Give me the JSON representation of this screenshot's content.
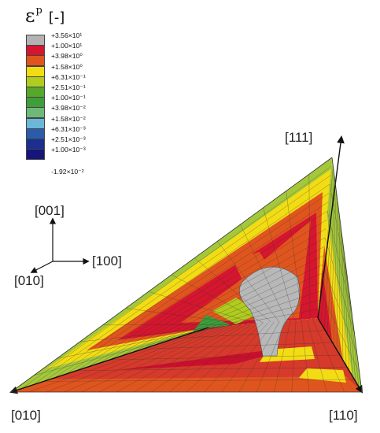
{
  "legend": {
    "symbol": "ε",
    "superscript": "p",
    "unit": "[-]",
    "levels": [
      {
        "label": "+3.56×10¹",
        "color": "#b3b3b3"
      },
      {
        "label": "+1.00×10¹",
        "color": "#d6152e"
      },
      {
        "label": "+3.98×10⁰",
        "color": "#e0551e"
      },
      {
        "label": "+1.58×10⁰",
        "color": "#f2dc14"
      },
      {
        "label": "+6.31×10⁻¹",
        "color": "#b0cc1f"
      },
      {
        "label": "+2.51×10⁻¹",
        "color": "#55a82a"
      },
      {
        "label": "+1.00×10⁻¹",
        "color": "#3e9e3a"
      },
      {
        "label": "+3.98×10⁻²",
        "color": "#6fb878"
      },
      {
        "label": "+1.58×10⁻²",
        "color": "#6bb7d8"
      },
      {
        "label": "+6.31×10⁻³",
        "color": "#2a5caa"
      },
      {
        "label": "+2.51×10⁻³",
        "color": "#1a2f8f"
      },
      {
        "label": "+1.00×10⁻³",
        "color": "#15157a"
      }
    ],
    "bottom_label": "-1.92×10⁻²"
  },
  "axes_triad": {
    "z": "[001]",
    "x": "[100]",
    "y": "[010]"
  },
  "directions": {
    "top": "[111]",
    "left": "[010]",
    "right": "[110]"
  }
}
